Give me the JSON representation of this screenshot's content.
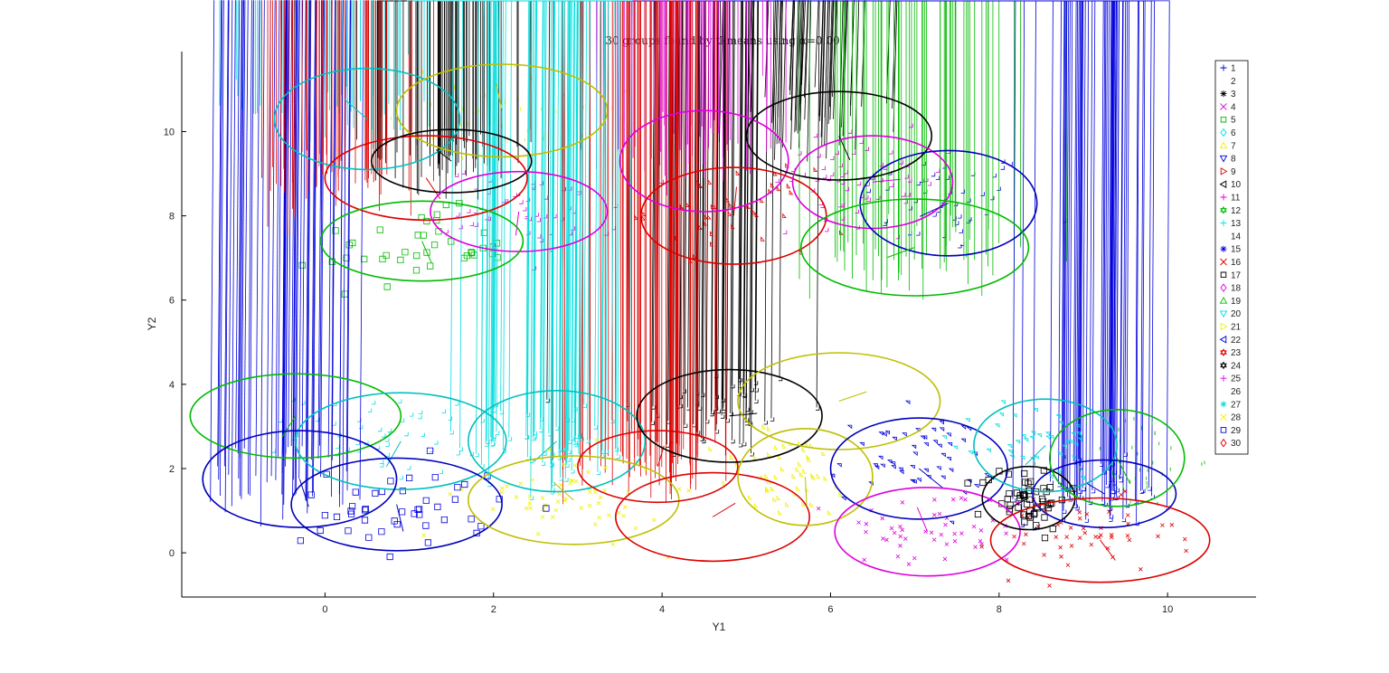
{
  "chart_data": {
    "type": "scatter",
    "title": "30 groups found by tkmeans using α=0.00",
    "xlabel": "Y1",
    "ylabel": "Y2",
    "xlim": [
      -1.7,
      11.05
    ],
    "ylim": [
      -1.05,
      11.9
    ],
    "xticks": [
      0,
      2,
      4,
      6,
      8,
      10
    ],
    "yticks": [
      0,
      2,
      4,
      6,
      8,
      10
    ],
    "grid": false,
    "legend_position": "right",
    "colors": {
      "blue": "#0000dd",
      "red": "#dd0000",
      "black": "#000000",
      "magenta": "#dd00dd",
      "green": "#00bb00",
      "cyan": "#00dddd",
      "yellow": "#f0f000",
      "olive": "#bfbf00"
    },
    "groups": [
      {
        "label": "1",
        "marker": "plus",
        "color": "blue",
        "center": [
          7.4,
          8.3
        ],
        "rx": 1.05,
        "ry": 1.3,
        "n": 45
      },
      {
        "label": "2",
        "marker": "circle",
        "color": "red",
        "center": [
          5.0,
          1.1
        ],
        "rx": 1.15,
        "ry": 1.05,
        "n": 50
      },
      {
        "label": "3",
        "marker": "asterisk",
        "color": "black",
        "center": [
          4.7,
          3.3
        ],
        "rx": 1.05,
        "ry": 1.2,
        "n": 60
      },
      {
        "label": "4",
        "marker": "x",
        "color": "magenta",
        "center": [
          7.3,
          0.5
        ],
        "rx": 1.2,
        "ry": 1.05,
        "n": 50
      },
      {
        "label": "5",
        "marker": "square",
        "color": "green",
        "center": [
          1.1,
          7.2
        ],
        "rx": 1.15,
        "ry": 0.95,
        "n": 40
      },
      {
        "label": "6",
        "marker": "diamond",
        "color": "cyan",
        "center": [
          0.2,
          10.5
        ],
        "rx": 1.2,
        "ry": 1.1,
        "n": 50
      },
      {
        "label": "7",
        "marker": "triangle-up",
        "color": "yellow",
        "center": [
          2.1,
          10.5
        ],
        "rx": 1.3,
        "ry": 1.05,
        "n": 55
      },
      {
        "label": "8",
        "marker": "triangle-down",
        "color": "blue",
        "center": [
          7.0,
          2.2
        ],
        "rx": 1.05,
        "ry": 1.1,
        "n": 55
      },
      {
        "label": "9",
        "marker": "triangle-right",
        "color": "red",
        "center": [
          4.8,
          8.1
        ],
        "rx": 1.0,
        "ry": 1.0,
        "n": 40
      },
      {
        "label": "10",
        "marker": "triangle-left",
        "color": "black",
        "center": [
          5.9,
          10.1
        ],
        "rx": 1.05,
        "ry": 1.0,
        "n": 50
      },
      {
        "label": "11",
        "marker": "plus",
        "color": "magenta",
        "center": [
          2.5,
          8.1
        ],
        "rx": 1.05,
        "ry": 1.05,
        "n": 55
      },
      {
        "label": "12",
        "marker": "hexagram",
        "color": "green",
        "center": [
          7.0,
          6.9
        ],
        "rx": 1.25,
        "ry": 1.05,
        "n": 60
      },
      {
        "label": "13",
        "marker": "plus",
        "color": "cyan",
        "center": [
          0.8,
          2.8
        ],
        "rx": 1.15,
        "ry": 1.0,
        "n": 50
      },
      {
        "label": "14",
        "marker": "circle",
        "color": "yellow",
        "center": [
          6.3,
          3.7
        ],
        "rx": 1.2,
        "ry": 1.15,
        "n": 55
      },
      {
        "label": "15",
        "marker": "asterisk",
        "color": "blue",
        "center": [
          9.2,
          1.4
        ],
        "rx": 0.9,
        "ry": 0.85,
        "n": 55
      },
      {
        "label": "16",
        "marker": "x",
        "color": "red",
        "center": [
          9.0,
          0.3
        ],
        "rx": 1.15,
        "ry": 0.95,
        "n": 50
      },
      {
        "label": "17",
        "marker": "square",
        "color": "black",
        "center": [
          8.3,
          1.3
        ],
        "rx": 0.55,
        "ry": 0.75,
        "n": 55
      },
      {
        "label": "18",
        "marker": "diamond",
        "color": "magenta",
        "center": [
          4.4,
          9.5
        ],
        "rx": 1.0,
        "ry": 1.05,
        "n": 55
      },
      {
        "label": "19",
        "marker": "triangle-up",
        "color": "green",
        "center": [
          9.5,
          2.2
        ],
        "rx": 0.85,
        "ry": 1.25,
        "n": 45
      },
      {
        "label": "20",
        "marker": "triangle-down",
        "color": "cyan",
        "center": [
          8.5,
          2.6
        ],
        "rx": 0.75,
        "ry": 0.95,
        "n": 40
      },
      {
        "label": "21",
        "marker": "triangle-right",
        "color": "yellow",
        "center": [
          5.5,
          1.8
        ],
        "rx": 0.95,
        "ry": 1.15,
        "n": 50
      },
      {
        "label": "22",
        "marker": "triangle-left",
        "color": "blue",
        "center": [
          -0.4,
          1.7
        ],
        "rx": 1.1,
        "ry": 1.05,
        "n": 60
      },
      {
        "label": "23",
        "marker": "hexagram",
        "color": "red",
        "center": [
          3.9,
          2.1
        ],
        "rx": 1.1,
        "ry": 0.9,
        "n": 75
      },
      {
        "label": "24",
        "marker": "hexagram",
        "color": "black",
        "center": [
          1.5,
          9.3
        ],
        "rx": 1.0,
        "ry": 0.9,
        "n": 70
      },
      {
        "label": "25",
        "marker": "plus",
        "color": "magenta",
        "center": [
          6.4,
          8.8
        ],
        "rx": 1.1,
        "ry": 1.05,
        "n": 60
      },
      {
        "label": "26",
        "marker": "circle",
        "color": "green",
        "center": [
          -0.3,
          3.2
        ],
        "rx": 1.3,
        "ry": 0.95,
        "n": 50
      },
      {
        "label": "27",
        "marker": "asterisk",
        "color": "cyan",
        "center": [
          2.7,
          2.5
        ],
        "rx": 1.1,
        "ry": 1.1,
        "n": 70
      },
      {
        "label": "28",
        "marker": "x",
        "color": "yellow",
        "center": [
          2.9,
          1.3
        ],
        "rx": 1.2,
        "ry": 1.05,
        "n": 60
      },
      {
        "label": "29",
        "marker": "square",
        "color": "blue",
        "center": [
          0.9,
          1.1
        ],
        "rx": 1.25,
        "ry": 1.15,
        "n": 45
      },
      {
        "label": "30",
        "marker": "diamond",
        "color": "red",
        "center": [
          0.2,
          8.7
        ],
        "rx": 1.15,
        "ry": 1.0,
        "n": 50
      }
    ],
    "ellipses": [
      {
        "center": [
          0.5,
          10.3
        ],
        "rx": 1.1,
        "ry": 1.2,
        "color": "#00c0c0"
      },
      {
        "center": [
          2.1,
          10.5
        ],
        "rx": 1.25,
        "ry": 1.1,
        "color": "#bfbf00"
      },
      {
        "center": [
          1.2,
          8.9
        ],
        "rx": 1.2,
        "ry": 1.0,
        "color": "#dd0000"
      },
      {
        "center": [
          1.5,
          9.3
        ],
        "rx": 0.95,
        "ry": 0.75,
        "color": "#000000"
      },
      {
        "center": [
          2.3,
          8.1
        ],
        "rx": 1.05,
        "ry": 0.95,
        "color": "#dd00dd"
      },
      {
        "center": [
          1.15,
          7.4
        ],
        "rx": 1.2,
        "ry": 0.95,
        "color": "#00bb00"
      },
      {
        "center": [
          4.5,
          9.3
        ],
        "rx": 1.0,
        "ry": 1.2,
        "color": "#dd00dd"
      },
      {
        "center": [
          4.85,
          8.0
        ],
        "rx": 1.1,
        "ry": 1.15,
        "color": "#dd0000"
      },
      {
        "center": [
          6.1,
          9.9
        ],
        "rx": 1.1,
        "ry": 1.05,
        "color": "#000000"
      },
      {
        "center": [
          6.5,
          8.8
        ],
        "rx": 0.95,
        "ry": 1.1,
        "color": "#dd00dd"
      },
      {
        "center": [
          7.4,
          8.3
        ],
        "rx": 1.05,
        "ry": 1.25,
        "color": "#0000bb"
      },
      {
        "center": [
          7.0,
          7.25
        ],
        "rx": 1.35,
        "ry": 1.15,
        "color": "#00bb00"
      },
      {
        "center": [
          -0.35,
          3.25
        ],
        "rx": 1.25,
        "ry": 1.0,
        "color": "#00bb00"
      },
      {
        "center": [
          0.9,
          2.65
        ],
        "rx": 1.25,
        "ry": 1.15,
        "color": "#00c0c0"
      },
      {
        "center": [
          -0.3,
          1.75
        ],
        "rx": 1.15,
        "ry": 1.15,
        "color": "#0000bb"
      },
      {
        "center": [
          0.85,
          1.15
        ],
        "rx": 1.25,
        "ry": 1.1,
        "color": "#0000bb"
      },
      {
        "center": [
          2.75,
          2.65
        ],
        "rx": 1.05,
        "ry": 1.2,
        "color": "#00c0c0"
      },
      {
        "center": [
          2.95,
          1.25
        ],
        "rx": 1.25,
        "ry": 1.05,
        "color": "#bfbf00"
      },
      {
        "center": [
          3.95,
          2.05
        ],
        "rx": 0.95,
        "ry": 0.85,
        "color": "#dd0000"
      },
      {
        "center": [
          4.6,
          0.85
        ],
        "rx": 1.15,
        "ry": 1.05,
        "color": "#dd0000"
      },
      {
        "center": [
          4.8,
          3.25
        ],
        "rx": 1.1,
        "ry": 1.1,
        "color": "#000000"
      },
      {
        "center": [
          6.1,
          3.6
        ],
        "rx": 1.2,
        "ry": 1.15,
        "color": "#bfbf00"
      },
      {
        "center": [
          5.7,
          1.8
        ],
        "rx": 0.8,
        "ry": 1.15,
        "color": "#bfbf00"
      },
      {
        "center": [
          7.05,
          2.0
        ],
        "rx": 1.05,
        "ry": 1.2,
        "color": "#0000bb"
      },
      {
        "center": [
          7.15,
          0.5
        ],
        "rx": 1.1,
        "ry": 1.05,
        "color": "#dd00dd"
      },
      {
        "center": [
          8.55,
          2.55
        ],
        "rx": 0.85,
        "ry": 1.1,
        "color": "#00c0c0"
      },
      {
        "center": [
          8.35,
          1.3
        ],
        "rx": 0.55,
        "ry": 0.75,
        "color": "#000000"
      },
      {
        "center": [
          9.25,
          1.4
        ],
        "rx": 0.85,
        "ry": 0.8,
        "color": "#0000bb"
      },
      {
        "center": [
          9.4,
          2.25
        ],
        "rx": 0.8,
        "ry": 1.15,
        "color": "#00bb00"
      },
      {
        "center": [
          9.2,
          0.3
        ],
        "rx": 1.3,
        "ry": 1.0,
        "color": "#dd0000"
      }
    ]
  }
}
